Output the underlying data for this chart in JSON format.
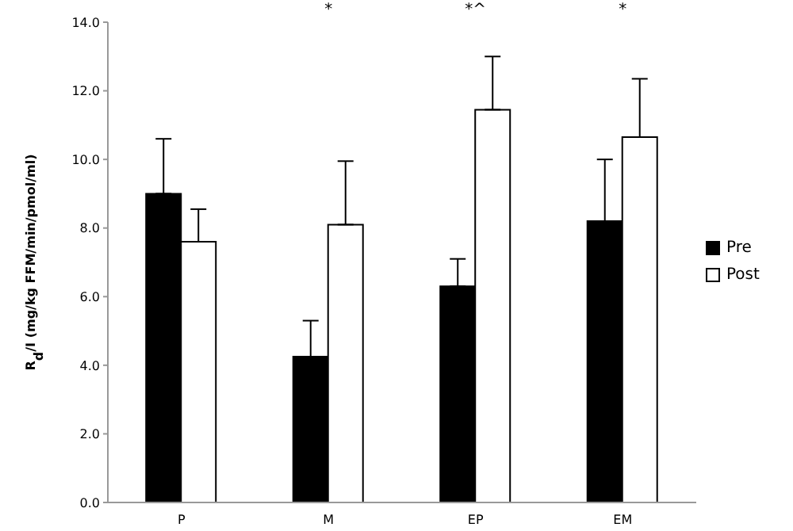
{
  "chart_data": {
    "type": "bar",
    "ylabel": "R$_{d}$/I (mg/kg FFM/min/pmol/ml)",
    "categories": [
      "P",
      "M",
      "EP",
      "EM"
    ],
    "series": [
      {
        "name": "Pre",
        "color": "#000000",
        "values": [
          9.0,
          4.25,
          6.3,
          8.2
        ],
        "errors": [
          [
            9.0,
            10.6
          ],
          [
            4.25,
            5.3
          ],
          [
            6.3,
            7.1
          ],
          [
            8.2,
            10.0
          ]
        ]
      },
      {
        "name": "Post",
        "color": "#ffffff",
        "values": [
          7.6,
          8.1,
          11.45,
          10.65
        ],
        "errors": [
          [
            7.6,
            8.55
          ],
          [
            8.1,
            9.95
          ],
          [
            11.45,
            13.0
          ],
          [
            10.65,
            12.35
          ]
        ]
      }
    ],
    "ylim": [
      0,
      14
    ],
    "yticks": [
      {
        "value": 0,
        "label": "0.0"
      },
      {
        "value": 2,
        "label": "2.0"
      },
      {
        "value": 4,
        "label": "4.0"
      },
      {
        "value": 6,
        "label": "6.0"
      },
      {
        "value": 8,
        "label": "8.0"
      },
      {
        "value": 10,
        "label": "10.0"
      },
      {
        "value": 12,
        "label": "12.0"
      },
      {
        "value": 14,
        "label": "14.0"
      }
    ],
    "annotations": [
      "*",
      "*^",
      "*"
    ],
    "legend": "right",
    "grid": false
  }
}
